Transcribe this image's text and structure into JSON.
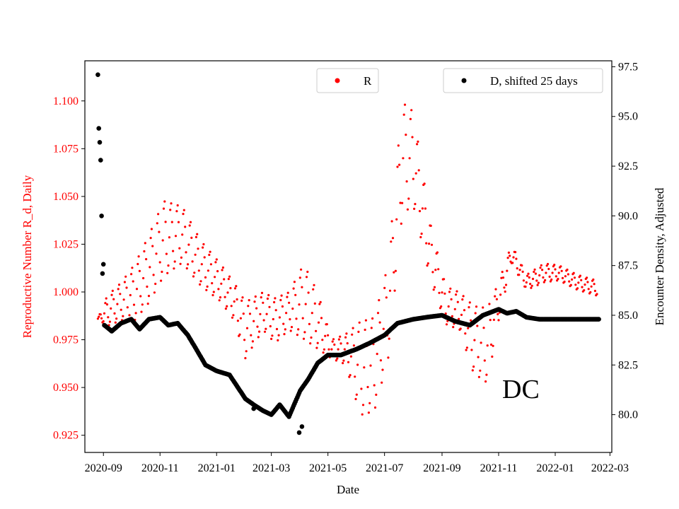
{
  "chart_data": {
    "type": "scatter",
    "region_label": "DC",
    "x_axis": {
      "label": "Date",
      "range": [
        "2020-08-12",
        "2022-03-03"
      ],
      "ticks": [
        "2020-09",
        "2020-11",
        "2021-01",
        "2021-03",
        "2021-05",
        "2021-07",
        "2021-09",
        "2021-11",
        "2022-01",
        "2022-03"
      ]
    },
    "y_left": {
      "label": "Reproductive Number R_d, Daily",
      "color": "#ff0000",
      "range": [
        0.916,
        1.121
      ],
      "ticks": [
        "0.925",
        "0.950",
        "0.975",
        "1.000",
        "1.025",
        "1.050",
        "1.075",
        "1.100"
      ]
    },
    "y_right": {
      "label": "Encounter Density, Adjusted",
      "color": "#000000",
      "range": [
        78.1,
        97.8
      ],
      "ticks": [
        "80.0",
        "82.5",
        "85.0",
        "87.5",
        "90.0",
        "92.5",
        "95.0",
        "97.5"
      ]
    },
    "legend_left": {
      "placement": "top-center",
      "label": "R",
      "color": "#ff0000"
    },
    "legend_right": {
      "placement": "top-right",
      "label": "D, shifted 25 days",
      "color": "#000000"
    },
    "series": [
      {
        "name": "R",
        "axis": "left",
        "color": "#ff0000",
        "markers_per_week": 7,
        "x": [
          "2020-08-26",
          "2020-09-05",
          "2020-09-20",
          "2020-10-05",
          "2020-10-20",
          "2020-11-05",
          "2020-11-25",
          "2020-12-15",
          "2021-01-05",
          "2021-01-20",
          "2021-02-01",
          "2021-02-20",
          "2021-03-05",
          "2021-03-20",
          "2021-04-05",
          "2021-04-20",
          "2021-05-05",
          "2021-05-20",
          "2021-06-05",
          "2021-06-20",
          "2021-07-05",
          "2021-07-20",
          "2021-08-01",
          "2021-08-20",
          "2021-09-05",
          "2021-09-20",
          "2021-10-05",
          "2021-10-20",
          "2021-11-01",
          "2021-11-15",
          "2021-12-01",
          "2021-12-20",
          "2022-01-05",
          "2022-01-25",
          "2022-02-15"
        ],
        "center": [
          0.986,
          0.99,
          0.995,
          1.0,
          1.012,
          1.028,
          1.03,
          1.015,
          1.005,
          0.995,
          0.98,
          0.99,
          0.985,
          0.99,
          0.995,
          0.985,
          0.97,
          0.97,
          0.96,
          0.962,
          0.99,
          1.07,
          1.07,
          1.02,
          0.993,
          0.99,
          0.975,
          0.972,
          0.995,
          1.02,
          1.005,
          1.01,
          1.01,
          1.005,
          1.002
        ],
        "amplitude": [
          0.0,
          0.008,
          0.01,
          0.015,
          0.018,
          0.02,
          0.015,
          0.012,
          0.01,
          0.01,
          0.015,
          0.01,
          0.012,
          0.01,
          0.02,
          0.015,
          0.005,
          0.008,
          0.025,
          0.025,
          0.025,
          0.03,
          0.025,
          0.015,
          0.01,
          0.01,
          0.018,
          0.02,
          0.01,
          0.005,
          0.004,
          0.005,
          0.004,
          0.004,
          0.004
        ]
      },
      {
        "name": "D, shifted 25 days",
        "axis": "right",
        "color": "#000000",
        "x": [
          "2020-08-26",
          "2020-08-28",
          "2020-08-30",
          "2020-09-02",
          "2020-09-10",
          "2020-09-20",
          "2020-10-01",
          "2020-10-10",
          "2020-10-20",
          "2020-11-01",
          "2020-11-10",
          "2020-11-20",
          "2020-12-01",
          "2020-12-10",
          "2020-12-20",
          "2021-01-01",
          "2021-01-15",
          "2021-02-01",
          "2021-02-10",
          "2021-02-20",
          "2021-03-01",
          "2021-03-10",
          "2021-03-20",
          "2021-04-01",
          "2021-04-10",
          "2021-04-20",
          "2021-05-01",
          "2021-05-15",
          "2021-06-01",
          "2021-06-15",
          "2021-07-01",
          "2021-07-15",
          "2021-08-01",
          "2021-08-15",
          "2021-09-01",
          "2021-09-15",
          "2021-10-01",
          "2021-10-15",
          "2021-11-01",
          "2021-11-10",
          "2021-11-20",
          "2021-12-01",
          "2021-12-15",
          "2022-01-01",
          "2022-01-15",
          "2022-02-01",
          "2022-02-17"
        ],
        "y": [
          97.1,
          94.4,
          93.7,
          84.5,
          84.2,
          84.6,
          84.8,
          84.3,
          84.8,
          84.9,
          84.5,
          84.6,
          84.0,
          83.3,
          82.5,
          82.2,
          82.0,
          80.8,
          80.5,
          80.2,
          80.0,
          80.5,
          79.9,
          81.2,
          81.8,
          82.6,
          83.0,
          83.0,
          83.3,
          83.6,
          84.0,
          84.6,
          84.8,
          84.9,
          85.0,
          84.7,
          84.5,
          85.0,
          85.3,
          85.1,
          85.2,
          84.9,
          84.8,
          84.8,
          84.8,
          84.8,
          84.8
        ],
        "outliers_x": [
          "2020-08-26",
          "2020-08-27",
          "2020-08-28",
          "2020-08-29",
          "2020-08-30",
          "2020-08-31",
          "2021-02-10",
          "2021-03-31",
          "2021-04-03"
        ],
        "outliers_y": [
          97.1,
          94.4,
          93.7,
          92.8,
          90.0,
          87.1,
          80.3,
          79.1,
          79.4
        ]
      }
    ]
  }
}
